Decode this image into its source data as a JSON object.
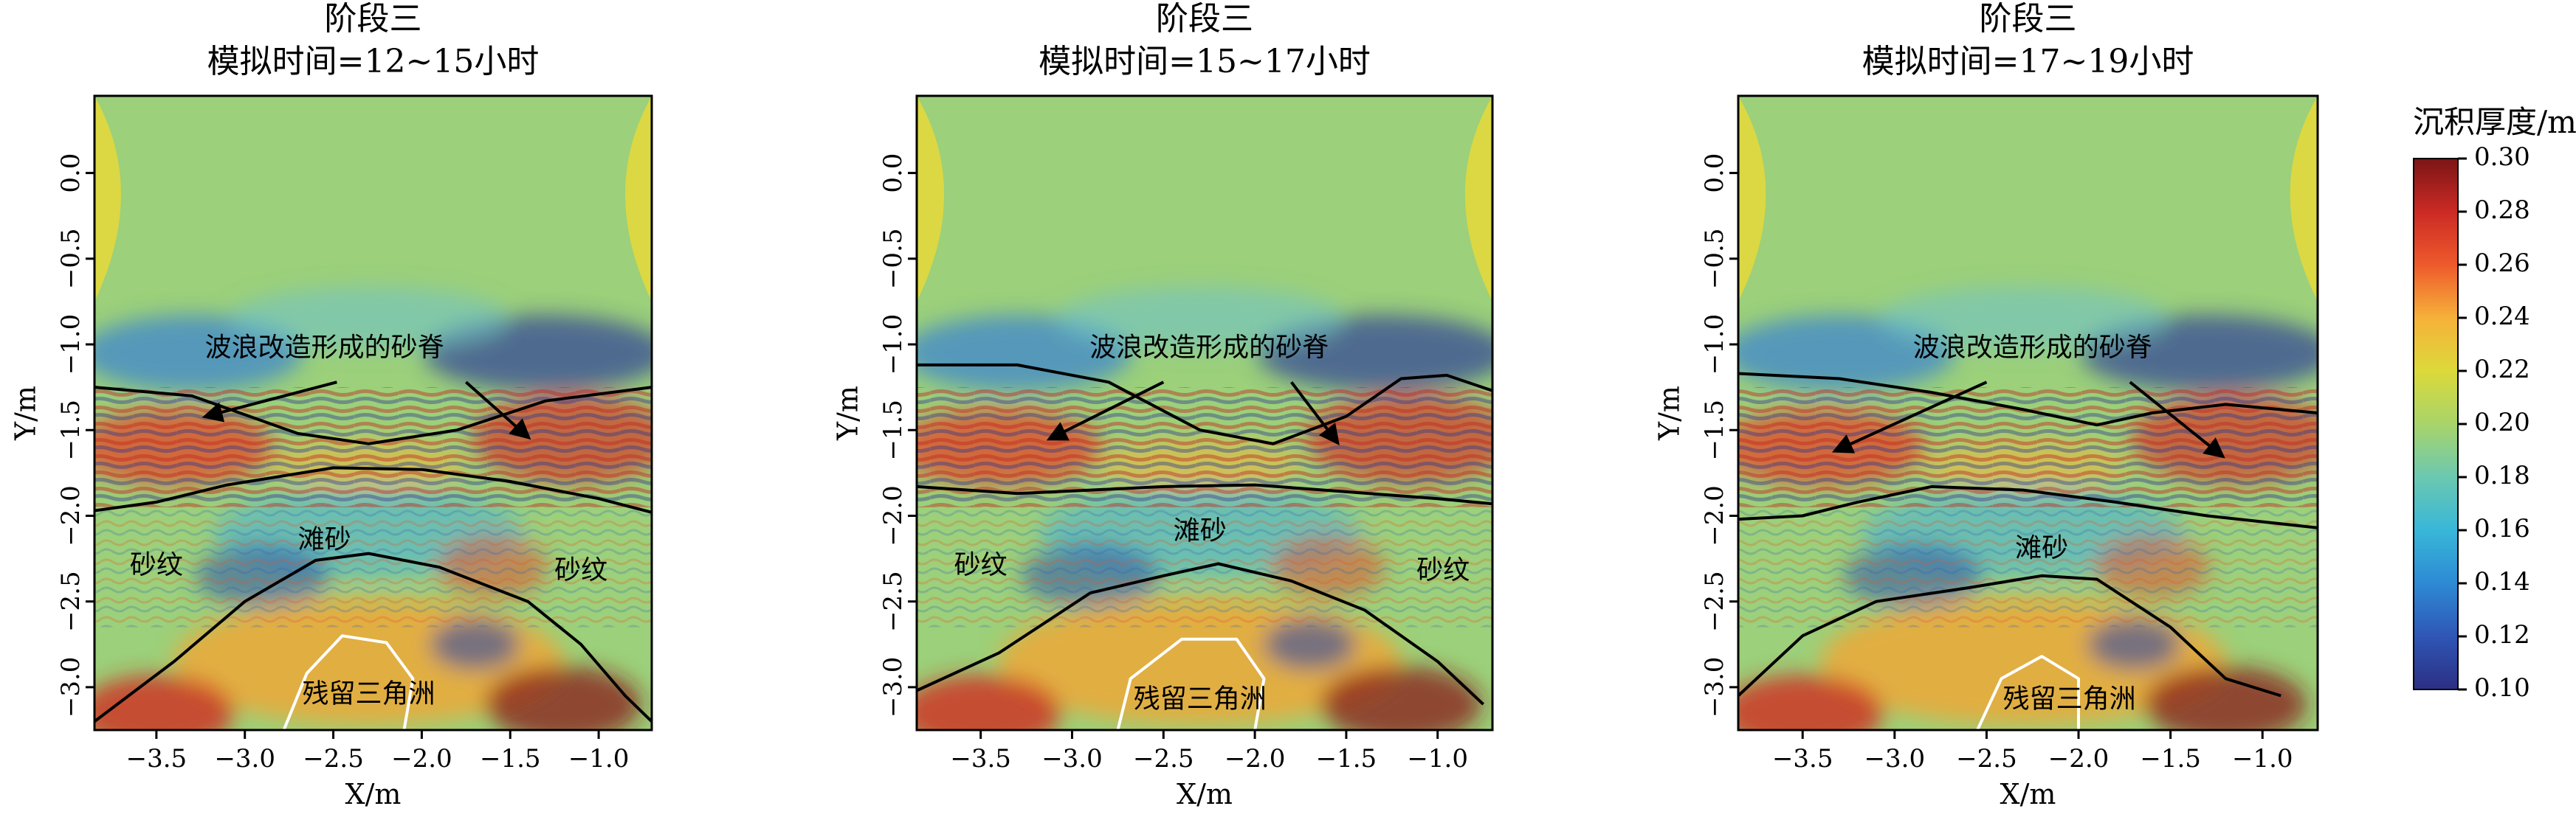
{
  "chart_data": [
    {
      "type": "heatmap",
      "title": "阶段三",
      "subtitle": "模拟时间=12~15小时",
      "xlabel": "X/m",
      "ylabel": "Y/m",
      "xlim": [
        -3.85,
        -0.7
      ],
      "ylim": [
        -3.25,
        0.45
      ],
      "xticks": [
        -3.5,
        -3.0,
        -2.5,
        -2.0,
        -1.5,
        -1.0
      ],
      "yticks": [
        0.0,
        -0.5,
        -1.0,
        -1.5,
        -2.0,
        -2.5,
        -3.0
      ],
      "annotations": [
        {
          "text": "波浪改造形成的砂脊",
          "x": -2.55,
          "y": -1.03
        },
        {
          "text": "滩砂",
          "x": -2.55,
          "y": -2.15
        },
        {
          "text": "砂纹",
          "x": -3.5,
          "y": -2.3
        },
        {
          "text": "砂纹",
          "x": -1.1,
          "y": -2.33
        },
        {
          "text": "残留三角洲",
          "x": -2.3,
          "y": -3.05
        }
      ],
      "arrows": [
        {
          "from": [
            -2.48,
            -1.22
          ],
          "to": [
            -3.22,
            -1.42
          ]
        },
        {
          "from": [
            -1.75,
            -1.22
          ],
          "to": [
            -1.4,
            -1.54
          ]
        }
      ],
      "boundaries": [
        {
          "name": "upper",
          "color": "#000000",
          "points": [
            [
              -3.85,
              -1.25
            ],
            [
              -3.3,
              -1.3
            ],
            [
              -2.7,
              -1.52
            ],
            [
              -2.3,
              -1.58
            ],
            [
              -1.8,
              -1.5
            ],
            [
              -1.3,
              -1.33
            ],
            [
              -0.7,
              -1.25
            ]
          ]
        },
        {
          "name": "middle",
          "color": "#000000",
          "points": [
            [
              -3.85,
              -1.97
            ],
            [
              -3.5,
              -1.92
            ],
            [
              -3.1,
              -1.82
            ],
            [
              -2.5,
              -1.72
            ],
            [
              -2.0,
              -1.73
            ],
            [
              -1.5,
              -1.8
            ],
            [
              -1.0,
              -1.9
            ],
            [
              -0.7,
              -1.98
            ]
          ]
        },
        {
          "name": "lower",
          "color": "#000000",
          "points": [
            [
              -3.85,
              -3.2
            ],
            [
              -3.4,
              -2.85
            ],
            [
              -3.0,
              -2.5
            ],
            [
              -2.6,
              -2.26
            ],
            [
              -2.3,
              -2.22
            ],
            [
              -1.9,
              -2.3
            ],
            [
              -1.4,
              -2.5
            ],
            [
              -1.1,
              -2.75
            ],
            [
              -0.85,
              -3.05
            ],
            [
              -0.7,
              -3.2
            ]
          ]
        },
        {
          "name": "delta",
          "color": "#ffffff",
          "points": [
            [
              -2.78,
              -3.25
            ],
            [
              -2.65,
              -2.92
            ],
            [
              -2.45,
              -2.7
            ],
            [
              -2.2,
              -2.74
            ],
            [
              -2.05,
              -2.95
            ],
            [
              -2.1,
              -3.25
            ]
          ]
        }
      ]
    },
    {
      "type": "heatmap",
      "title": "阶段三",
      "subtitle": "模拟时间=15~17小时",
      "xlabel": "X/m",
      "ylabel": "Y/m",
      "xlim": [
        -3.85,
        -0.7
      ],
      "ylim": [
        -3.25,
        0.45
      ],
      "xticks": [
        -3.5,
        -3.0,
        -2.5,
        -2.0,
        -1.5,
        -1.0
      ],
      "yticks": [
        0.0,
        -0.5,
        -1.0,
        -1.5,
        -2.0,
        -2.5,
        -3.0
      ],
      "annotations": [
        {
          "text": "波浪改造形成的砂脊",
          "x": -2.25,
          "y": -1.03
        },
        {
          "text": "滩砂",
          "x": -2.3,
          "y": -2.1
        },
        {
          "text": "砂纹",
          "x": -3.5,
          "y": -2.3
        },
        {
          "text": "砂纹",
          "x": -0.97,
          "y": -2.33
        },
        {
          "text": "残留三角洲",
          "x": -2.3,
          "y": -3.08
        }
      ],
      "arrows": [
        {
          "from": [
            -2.5,
            -1.22
          ],
          "to": [
            -3.12,
            -1.55
          ]
        },
        {
          "from": [
            -1.8,
            -1.22
          ],
          "to": [
            -1.55,
            -1.57
          ]
        }
      ],
      "boundaries": [
        {
          "name": "upper",
          "color": "#000000",
          "points": [
            [
              -3.85,
              -1.12
            ],
            [
              -3.3,
              -1.12
            ],
            [
              -2.8,
              -1.22
            ],
            [
              -2.3,
              -1.5
            ],
            [
              -1.9,
              -1.58
            ],
            [
              -1.5,
              -1.42
            ],
            [
              -1.2,
              -1.2
            ],
            [
              -0.95,
              -1.18
            ],
            [
              -0.7,
              -1.27
            ]
          ]
        },
        {
          "name": "middle",
          "color": "#000000",
          "points": [
            [
              -3.85,
              -1.83
            ],
            [
              -3.3,
              -1.87
            ],
            [
              -2.9,
              -1.85
            ],
            [
              -2.5,
              -1.83
            ],
            [
              -2.0,
              -1.82
            ],
            [
              -1.5,
              -1.86
            ],
            [
              -1.0,
              -1.9
            ],
            [
              -0.7,
              -1.93
            ]
          ]
        },
        {
          "name": "lower",
          "color": "#000000",
          "points": [
            [
              -3.85,
              -3.02
            ],
            [
              -3.4,
              -2.8
            ],
            [
              -2.9,
              -2.45
            ],
            [
              -2.5,
              -2.35
            ],
            [
              -2.2,
              -2.28
            ],
            [
              -1.8,
              -2.38
            ],
            [
              -1.4,
              -2.55
            ],
            [
              -1.0,
              -2.85
            ],
            [
              -0.75,
              -3.1
            ]
          ]
        },
        {
          "name": "delta",
          "color": "#ffffff",
          "points": [
            [
              -2.75,
              -3.25
            ],
            [
              -2.68,
              -2.95
            ],
            [
              -2.4,
              -2.72
            ],
            [
              -2.1,
              -2.72
            ],
            [
              -1.95,
              -2.95
            ],
            [
              -2.0,
              -3.25
            ]
          ]
        }
      ]
    },
    {
      "type": "heatmap",
      "title": "阶段三",
      "subtitle": "模拟时间=17~19小时",
      "xlabel": "X/m",
      "ylabel": "Y/m",
      "xlim": [
        -3.85,
        -0.7
      ],
      "ylim": [
        -3.25,
        0.45
      ],
      "xticks": [
        -3.5,
        -3.0,
        -2.5,
        -2.0,
        -1.5,
        -1.0
      ],
      "yticks": [
        0.0,
        -0.5,
        -1.0,
        -1.5,
        -2.0,
        -2.5,
        -3.0
      ],
      "annotations": [
        {
          "text": "波浪改造形成的砂脊",
          "x": -2.25,
          "y": -1.03
        },
        {
          "text": "滩砂",
          "x": -2.2,
          "y": -2.2
        },
        {
          "text": "残留三角洲",
          "x": -2.05,
          "y": -3.08
        }
      ],
      "arrows": [
        {
          "from": [
            -2.5,
            -1.22
          ],
          "to": [
            -3.32,
            -1.62
          ]
        },
        {
          "from": [
            -1.72,
            -1.22
          ],
          "to": [
            -1.22,
            -1.65
          ]
        }
      ],
      "boundaries": [
        {
          "name": "upper",
          "color": "#000000",
          "points": [
            [
              -3.85,
              -1.17
            ],
            [
              -3.3,
              -1.2
            ],
            [
              -2.8,
              -1.28
            ],
            [
              -2.3,
              -1.38
            ],
            [
              -1.9,
              -1.47
            ],
            [
              -1.6,
              -1.4
            ],
            [
              -1.2,
              -1.35
            ],
            [
              -0.7,
              -1.4
            ]
          ]
        },
        {
          "name": "middle",
          "color": "#000000",
          "points": [
            [
              -3.85,
              -2.02
            ],
            [
              -3.5,
              -2.0
            ],
            [
              -3.2,
              -1.92
            ],
            [
              -2.8,
              -1.83
            ],
            [
              -2.3,
              -1.85
            ],
            [
              -1.8,
              -1.92
            ],
            [
              -1.3,
              -2.0
            ],
            [
              -0.7,
              -2.07
            ]
          ]
        },
        {
          "name": "lower",
          "color": "#000000",
          "points": [
            [
              -3.85,
              -3.05
            ],
            [
              -3.5,
              -2.7
            ],
            [
              -3.1,
              -2.5
            ],
            [
              -2.6,
              -2.42
            ],
            [
              -2.2,
              -2.35
            ],
            [
              -1.9,
              -2.37
            ],
            [
              -1.5,
              -2.65
            ],
            [
              -1.2,
              -2.95
            ],
            [
              -0.9,
              -3.05
            ]
          ]
        },
        {
          "name": "delta",
          "color": "#ffffff",
          "points": [
            [
              -2.55,
              -3.25
            ],
            [
              -2.42,
              -2.95
            ],
            [
              -2.2,
              -2.82
            ],
            [
              -2.0,
              -2.95
            ],
            [
              -2.0,
              -3.25
            ]
          ]
        }
      ]
    }
  ],
  "colorbar": {
    "label": "沉积厚度/m",
    "min": 0.1,
    "max": 0.3,
    "ticks": [
      "0.30",
      "0.28",
      "0.26",
      "0.24",
      "0.22",
      "0.20",
      "0.18",
      "0.16",
      "0.14",
      "0.12",
      "0.10"
    ],
    "colormap": [
      "#2b2f83",
      "#2f56b5",
      "#2d8ad4",
      "#38b7d8",
      "#6bc8b0",
      "#a8d46a",
      "#dcd93a",
      "#f6b13a",
      "#ee5a2c",
      "#cb2a24",
      "#7b1516"
    ]
  }
}
